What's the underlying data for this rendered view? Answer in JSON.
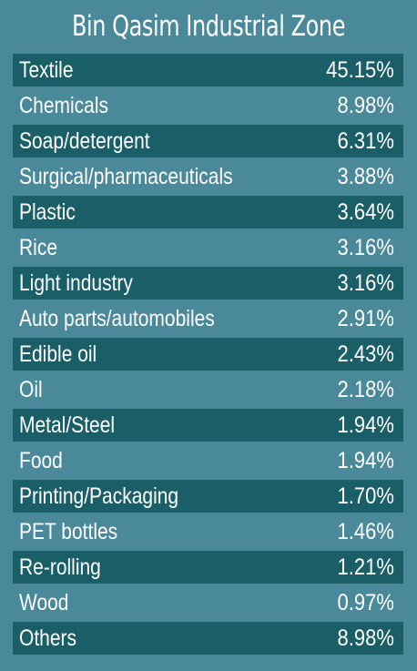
{
  "chart_data": {
    "type": "table",
    "title": "Bin Qasim Industrial Zone",
    "rows": [
      {
        "label": "Textile",
        "value": "45.15%"
      },
      {
        "label": "Chemicals",
        "value": "8.98%"
      },
      {
        "label": "Soap/detergent",
        "value": "6.31%"
      },
      {
        "label": "Surgical/pharmaceuticals",
        "value": "3.88%"
      },
      {
        "label": "Plastic",
        "value": "3.64%"
      },
      {
        "label": "Rice",
        "value": "3.16%"
      },
      {
        "label": "Light industry",
        "value": "3.16%"
      },
      {
        "label": "Auto parts/automobiles",
        "value": "2.91%"
      },
      {
        "label": "Edible oil",
        "value": "2.43%"
      },
      {
        "label": "Oil",
        "value": "2.18%"
      },
      {
        "label": "Metal/Steel",
        "value": "1.94%"
      },
      {
        "label": "Food",
        "value": "1.94%"
      },
      {
        "label": "Printing/Packaging",
        "value": "1.70%"
      },
      {
        "label": "PET bottles",
        "value": "1.46%"
      },
      {
        "label": "Re-rolling",
        "value": "1.21%"
      },
      {
        "label": "Wood",
        "value": "0.97%"
      },
      {
        "label": "Others",
        "value": "8.98%"
      }
    ]
  },
  "colors": {
    "background": "#4a8999",
    "row_dark": "#1a5f68",
    "text": "#ffffff"
  }
}
